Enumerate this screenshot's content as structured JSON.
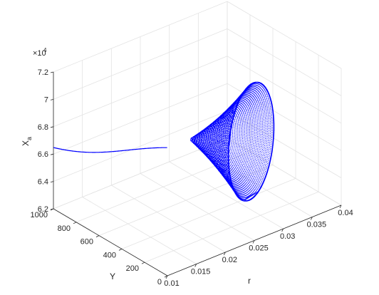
{
  "chart_data": {
    "type": "scatter",
    "projection": "3d",
    "title": "",
    "xlabel": "r",
    "ylabel": "Y",
    "zlabel": "X",
    "zlabel_subscript": "a",
    "z_exponent_label": "×10",
    "z_exponent": "4",
    "xlim": [
      0.01,
      0.04
    ],
    "ylim": [
      0,
      1000
    ],
    "zlim": [
      6.2,
      7.2
    ],
    "xticks": [
      "0.01",
      "0.015",
      "0.02",
      "0.025",
      "0.03",
      "0.035",
      "0.04"
    ],
    "yticks": [
      "0",
      "200",
      "400",
      "600",
      "800",
      "1000"
    ],
    "zticks": [
      "6.2",
      "6.4",
      "6.6",
      "6.8",
      "7",
      "7.2"
    ],
    "grid": true,
    "marker_color": "#0000ff",
    "series": [
      {
        "kind": "transient_tail",
        "r_start": 0.01,
        "r_end": 0.022,
        "Y_start": 1000,
        "Y_end": 620,
        "Xa_start": 6.65,
        "Xa_end": 6.63
      },
      {
        "kind": "attractor_surface",
        "center_r": 0.0255,
        "center_Y": 600,
        "center_Xa": 6.64,
        "r_extent": 0.012,
        "Y_extent": 480,
        "Xa_min": 6.24,
        "Xa_max": 7.08
      }
    ]
  }
}
